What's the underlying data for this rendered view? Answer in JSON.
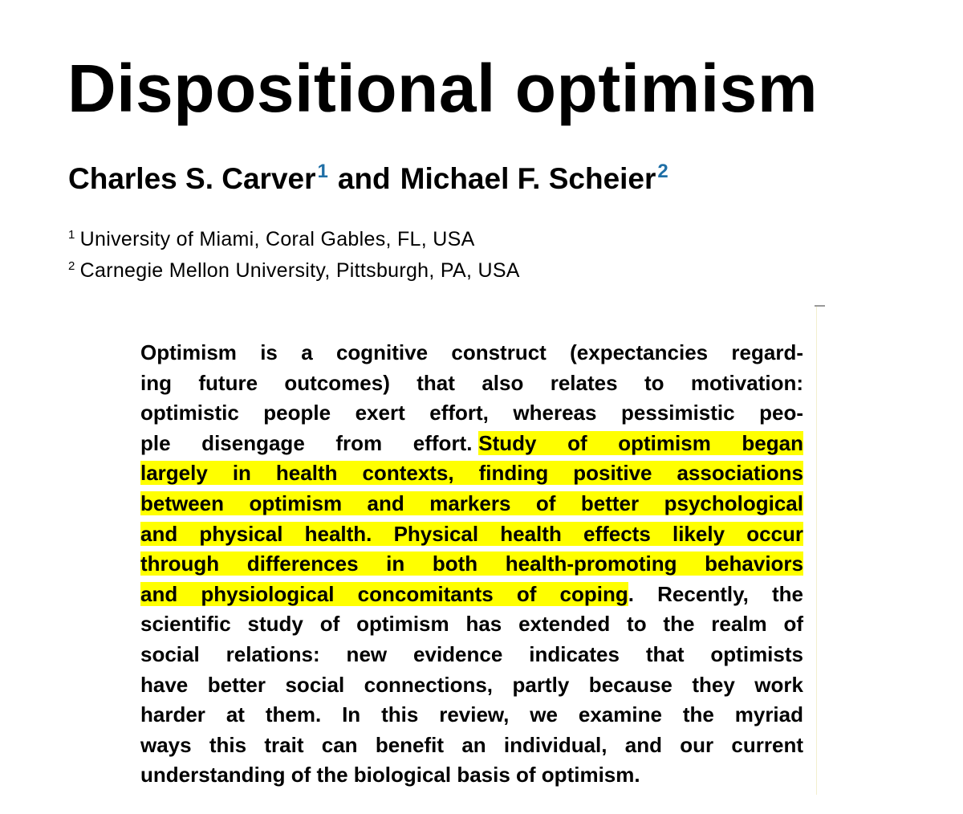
{
  "title": "Dispositional optimism",
  "authors": [
    {
      "name": "Charles S. Carver",
      "mark": "1"
    },
    {
      "name": "Michael F. Scheier",
      "mark": "2"
    }
  ],
  "author_joiner": "and",
  "affiliations": [
    {
      "mark": "1",
      "text": "University of Miami, Coral Gables, FL, USA"
    },
    {
      "mark": "2",
      "text": "Carnegie Mellon University, Pittsburgh, PA, USA"
    }
  ],
  "abstract": {
    "highlight_color": "#ffff00",
    "lines": [
      [
        {
          "text": "Optimism is a cognitive construct (expectancies regard-"
        }
      ],
      [
        {
          "text": "ing future outcomes) that also relates to motivation:"
        }
      ],
      [
        {
          "text": "optimistic people exert effort, whereas pessimistic peo-"
        }
      ],
      [
        {
          "text": "ple disengage from effort."
        },
        {
          "text": "Study of optimism began",
          "highlighted": true
        }
      ],
      [
        {
          "text": "largely in health contexts, finding positive associations",
          "highlighted": true
        }
      ],
      [
        {
          "text": "between optimism and markers of better psychological",
          "highlighted": true
        }
      ],
      [
        {
          "text": "and physical health. Physical health effects likely occur",
          "highlighted": true
        }
      ],
      [
        {
          "text": "through differences in both health-promoting behaviors",
          "highlighted": true
        }
      ],
      [
        {
          "text": "and physiological concomitants of coping",
          "highlighted": true
        },
        {
          "text": ". Recently, the"
        }
      ],
      [
        {
          "text": "scientific study of optimism has extended to the realm of"
        }
      ],
      [
        {
          "text": "social relations: new evidence indicates that optimists"
        }
      ],
      [
        {
          "text": "have better social connections, partly because they work"
        }
      ],
      [
        {
          "text": "harder at them. In this review, we examine the myriad"
        }
      ],
      [
        {
          "text": "ways this trait can benefit an individual, and our current"
        }
      ],
      [
        {
          "text": "understanding of the biological basis of optimism."
        }
      ]
    ]
  }
}
